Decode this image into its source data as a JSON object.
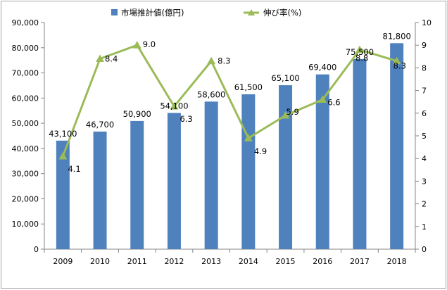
{
  "chart_data": {
    "type": "bar+line",
    "categories": [
      "2009",
      "2010",
      "2011",
      "2012",
      "2013",
      "2014",
      "2015",
      "2016",
      "2017",
      "2018"
    ],
    "series": [
      {
        "name": "市場推計値(億円)",
        "type": "bar",
        "axis": "left",
        "color": "#4F81BD",
        "values": [
          43100,
          46700,
          50900,
          54100,
          58600,
          61500,
          65100,
          69400,
          75500,
          81800
        ],
        "labels": [
          "43,100",
          "46,700",
          "50,900",
          "54,100",
          "58,600",
          "61,500",
          "65,100",
          "69,400",
          "75,500",
          "81,800"
        ]
      },
      {
        "name": "伸び率(%)",
        "type": "line",
        "axis": "right",
        "color": "#9BBB59",
        "values": [
          4.1,
          8.4,
          9.0,
          6.3,
          8.3,
          4.9,
          5.9,
          6.6,
          8.8,
          8.3
        ],
        "labels": [
          "4.1",
          "8.4",
          "9.0",
          "6.3",
          "8.3",
          "4.9",
          "5.9",
          "6.6",
          "8.8",
          "8.3"
        ]
      }
    ],
    "y_left": {
      "range": [
        0,
        90000
      ],
      "ticks": [
        0,
        10000,
        20000,
        30000,
        40000,
        50000,
        60000,
        70000,
        80000,
        90000
      ],
      "tick_labels": [
        "0",
        "10,000",
        "20,000",
        "30,000",
        "40,000",
        "50,000",
        "60,000",
        "70,000",
        "80,000",
        "90,000"
      ]
    },
    "y_right": {
      "range": [
        0,
        10
      ],
      "ticks": [
        0,
        1,
        2,
        3,
        4,
        5,
        6,
        7,
        8,
        9,
        10
      ],
      "tick_labels": [
        "0",
        "1",
        "2",
        "3",
        "4",
        "5",
        "6",
        "7",
        "8",
        "9",
        "10"
      ]
    },
    "grid": false,
    "legend_position": "top"
  }
}
